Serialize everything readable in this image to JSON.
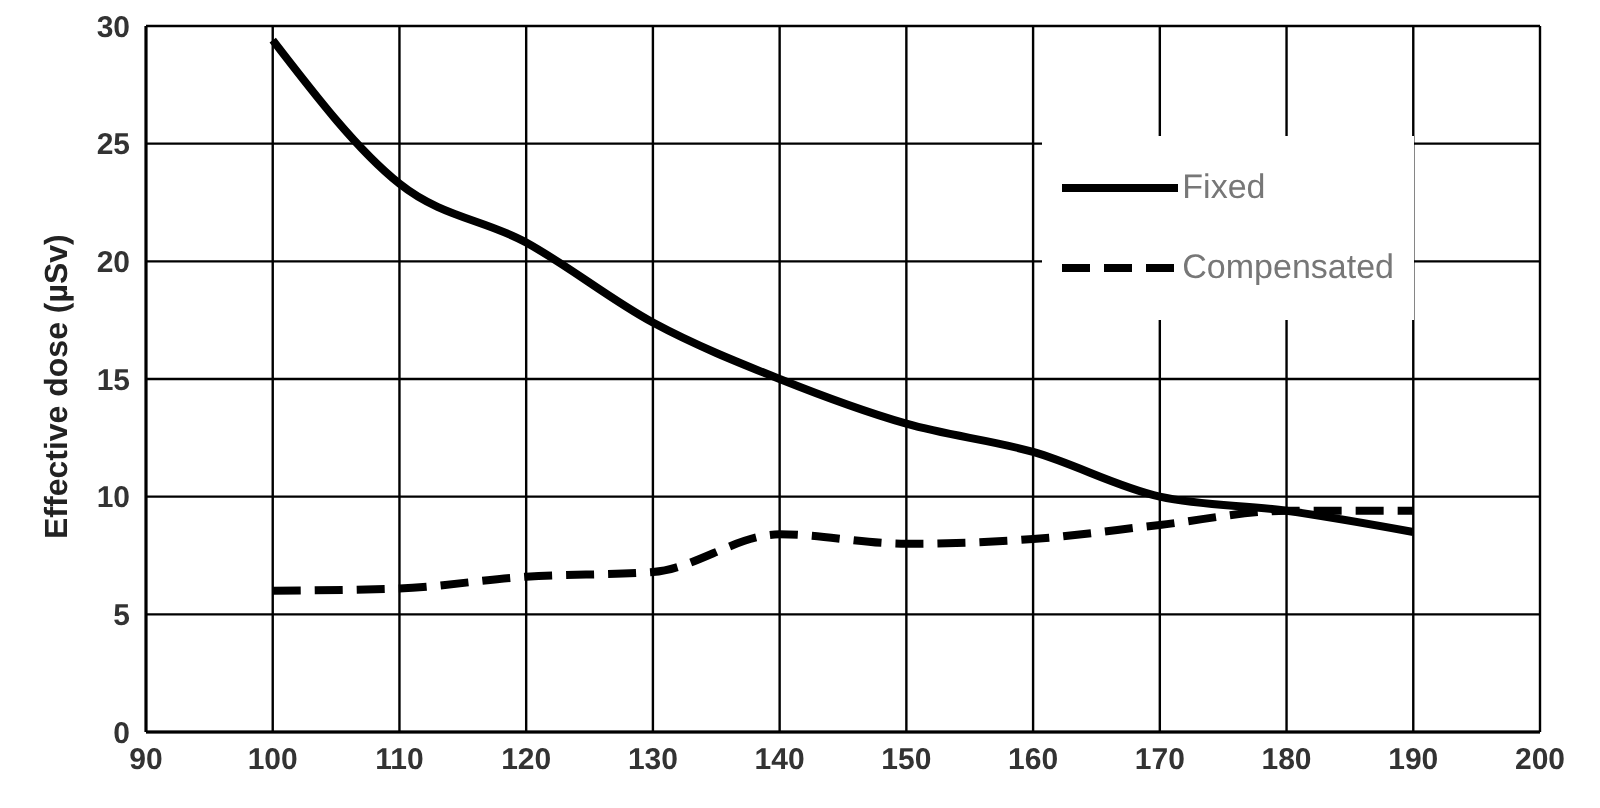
{
  "chart_data": {
    "type": "line",
    "ylabel": "Effective dose (µSv)",
    "x": [
      100,
      110,
      120,
      130,
      140,
      150,
      160,
      170,
      180,
      190
    ],
    "series": [
      {
        "name": "Fixed",
        "color": "#000000",
        "line_style": "solid",
        "values": [
          29.4,
          23.3,
          20.8,
          17.4,
          15.0,
          13.1,
          11.9,
          10.0,
          9.4,
          8.5
        ]
      },
      {
        "name": "Compensated",
        "color": "#000000",
        "line_style": "dashed",
        "values": [
          6.0,
          6.1,
          6.6,
          6.8,
          8.4,
          8.0,
          8.2,
          8.8,
          9.4,
          9.4
        ]
      }
    ],
    "xlim": [
      90,
      200
    ],
    "xticks": [
      90,
      100,
      110,
      120,
      130,
      140,
      150,
      160,
      170,
      180,
      190,
      200
    ],
    "ylim": [
      0,
      30
    ],
    "yticks": [
      0,
      5,
      10,
      15,
      20,
      25,
      30
    ],
    "grid": true,
    "legend": "top right",
    "marker": "none"
  }
}
